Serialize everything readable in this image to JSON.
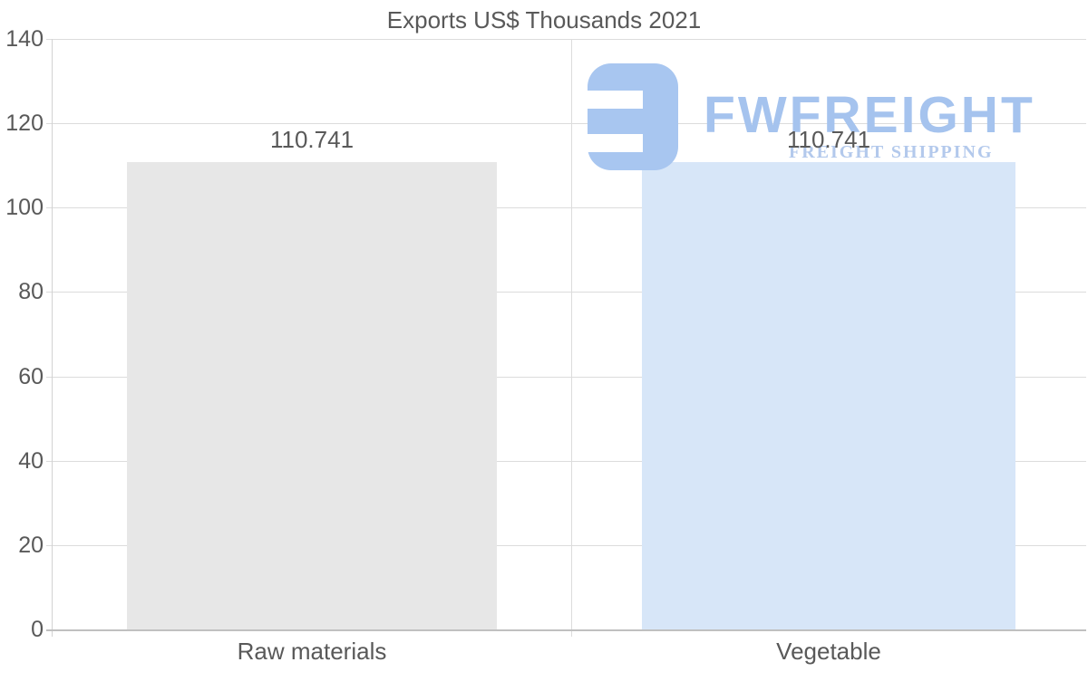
{
  "title": "Exports US$ Thousands 2021",
  "watermark": {
    "brand": "FWFREIGHT",
    "tagline": "FREIGHT SHIPPING",
    "icon": "fwfreight-logo-icon",
    "brand_color": "#a5c3ee",
    "tagline_color": "#b3c9ec",
    "icon_color": "#a8c6f0"
  },
  "colors": {
    "title_text": "#595959",
    "axis_text": "#595959",
    "data_label_text": "#595959",
    "gridline": "#dcdcdc",
    "baseline": "#c0c0c0",
    "axis_line": "#d2d2d2"
  },
  "chart_data": {
    "type": "bar",
    "title": "Exports US$ Thousands 2021",
    "categories": [
      "Raw materials",
      "Vegetable"
    ],
    "values": [
      110.741,
      110.741
    ],
    "data_labels": [
      "110.741",
      "110.741"
    ],
    "bar_colors": [
      "#e7e7e7",
      "#d7e6f8"
    ],
    "xlabel": "",
    "ylabel": "",
    "ylim": [
      0,
      140
    ],
    "yticks": [
      0,
      20,
      40,
      60,
      80,
      100,
      120,
      140
    ],
    "grid": true,
    "legend": false
  }
}
